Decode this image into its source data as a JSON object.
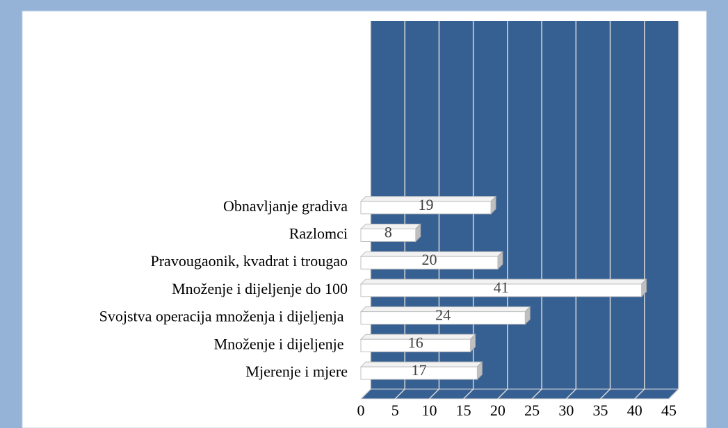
{
  "chart_data": {
    "type": "bar3d",
    "categories": [
      "Mjerenje i mjere",
      "Množenje i dijeljenje ",
      "Svojstva operacija množenja i dijeljenja ",
      "Množenje i dijeljenje do 100",
      "Pravougaonik, kvadrat i trougao",
      "Razlomci",
      "Obnavljanje gradiva"
    ],
    "values": [
      17,
      16,
      24,
      41,
      20,
      8,
      19
    ],
    "color": "#ffffff",
    "wall_color": "#376092",
    "xlim": [
      0,
      45
    ],
    "xticks": [
      0,
      5,
      10,
      15,
      20,
      25,
      30,
      35,
      40,
      45
    ],
    "grid": true
  }
}
